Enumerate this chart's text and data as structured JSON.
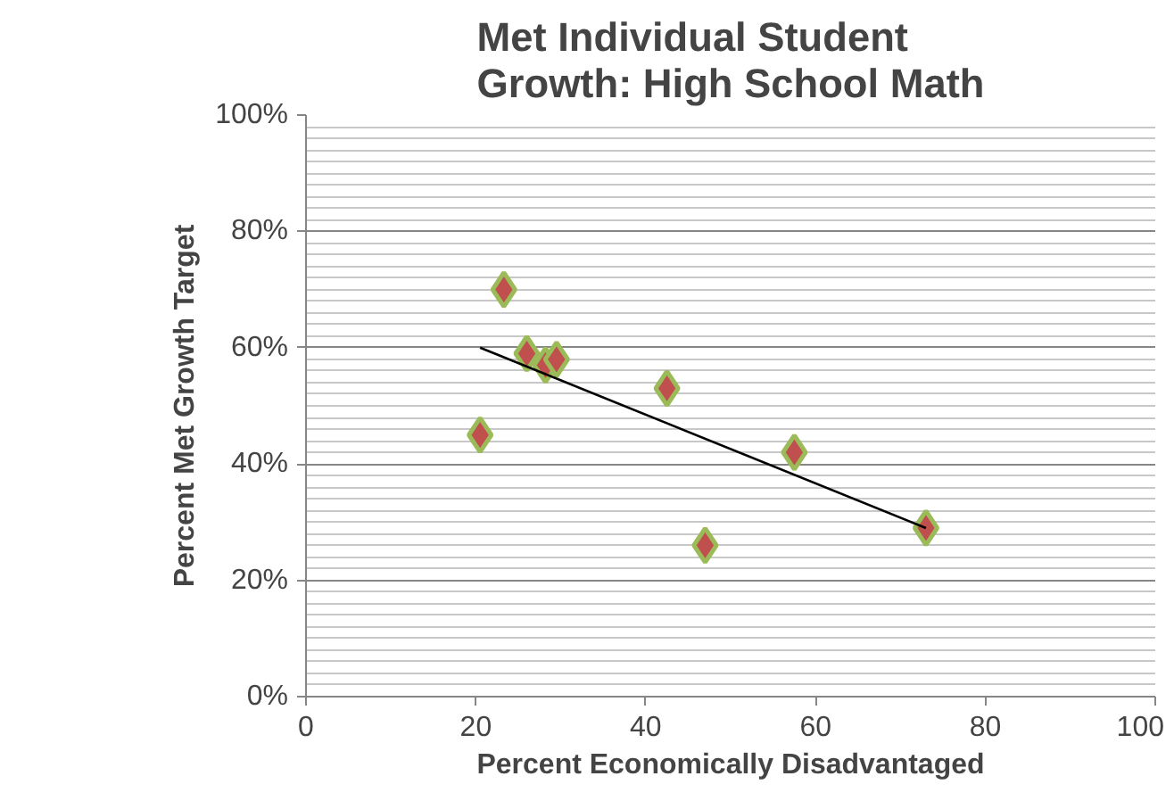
{
  "chart_data": {
    "type": "scatter",
    "title": "Met Individual Student Growth: High School Math",
    "xlabel": "Percent Economically Disadvantaged",
    "ylabel": "Percent Met Growth Target",
    "series": [
      {
        "color": "#c0504d",
        "x": [
          20.5,
          23.3,
          26,
          28.2,
          29.5,
          42.5,
          47,
          57.5,
          73
        ],
        "values": [
          45,
          70,
          59,
          57,
          58,
          53,
          26,
          42,
          29
        ],
        "marker": "diamond"
      },
      {
        "type": "line",
        "color": "#000000",
        "x": [
          20.5,
          73
        ],
        "values": [
          60,
          29
        ],
        "marker": "none"
      }
    ],
    "xlim": [
      0,
      100
    ],
    "xticks": [
      0,
      20,
      40,
      60,
      80,
      100
    ],
    "ylim": [
      0,
      100
    ],
    "yticks": [
      {
        "value": 0,
        "label": "0%"
      },
      {
        "value": 20,
        "label": "20%"
      },
      {
        "value": 40,
        "label": "40%"
      },
      {
        "value": 60,
        "label": "60%"
      },
      {
        "value": 80,
        "label": "80%"
      },
      {
        "value": 100,
        "label": "100%"
      }
    ],
    "grid": "y"
  }
}
